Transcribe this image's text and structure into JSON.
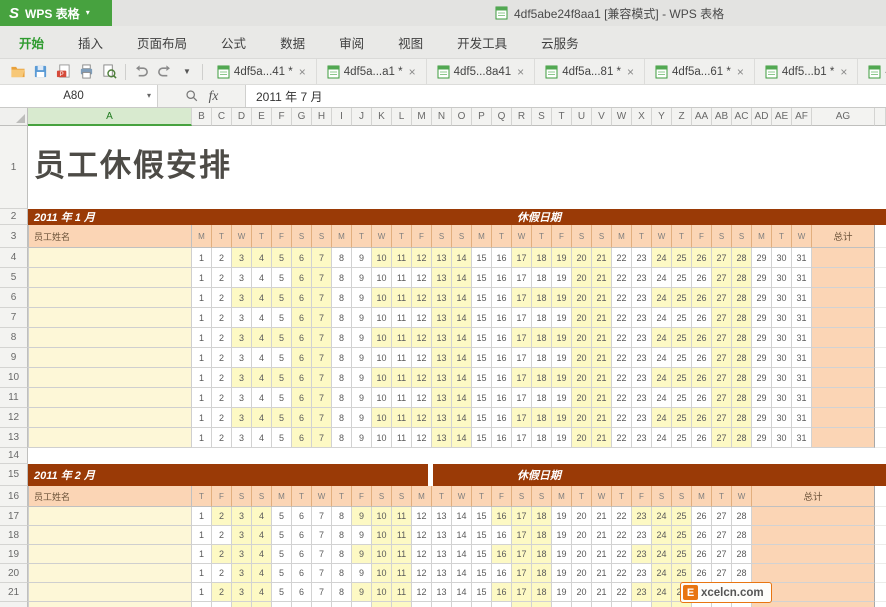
{
  "titlebar": {
    "app_button_label": "WPS 表格",
    "window_title": "4df5abe24f8aa1 [兼容模式] - WPS 表格"
  },
  "menu": {
    "tabs": [
      "开始",
      "插入",
      "页面布局",
      "公式",
      "数据",
      "审阅",
      "视图",
      "开发工具",
      "云服务"
    ],
    "active_tab": "开始"
  },
  "toolbar": {
    "icon_names": [
      "open-file",
      "save",
      "export-pdf",
      "print",
      "print-preview",
      "undo",
      "redo",
      "customize-toolbar-dropdown"
    ],
    "doc_tabs": [
      {
        "label": "4df5a...41",
        "dirty": true
      },
      {
        "label": "4df5a...a1",
        "dirty": true
      },
      {
        "label": "4df5...8a41",
        "dirty": false
      },
      {
        "label": "4df5a...81",
        "dirty": true
      },
      {
        "label": "4df5a...61",
        "dirty": true
      },
      {
        "label": "4df5...b1",
        "dirty": true
      },
      {
        "label": "4df5a...",
        "dirty": false
      }
    ]
  },
  "formula_bar": {
    "cell_ref": "A80",
    "value": "2011 年 7 月"
  },
  "column_headers": [
    "A",
    "B",
    "C",
    "D",
    "E",
    "F",
    "G",
    "H",
    "I",
    "J",
    "K",
    "L",
    "M",
    "N",
    "O",
    "P",
    "Q",
    "R",
    "S",
    "T",
    "U",
    "V",
    "W",
    "X",
    "Y",
    "Z",
    "AA",
    "AB",
    "AC",
    "AD",
    "AE",
    "AF",
    "AG"
  ],
  "row_headers": [
    1,
    2,
    3,
    4,
    5,
    6,
    7,
    8,
    9,
    10,
    11,
    12,
    13,
    14,
    15,
    16,
    17,
    18,
    19,
    20,
    21
  ],
  "sheet": {
    "doc_title": "员工休假安排",
    "tables": [
      {
        "month_label": "2011 年 1 月",
        "dates_header": "休假日期",
        "name_header": "员工姓名",
        "total_header": "总计",
        "day_letters": [
          "M",
          "T",
          "W",
          "T",
          "F",
          "S",
          "S",
          "M",
          "T",
          "W",
          "T",
          "F",
          "S",
          "S",
          "M",
          "T",
          "W",
          "T",
          "F",
          "S",
          "S",
          "M",
          "T",
          "W",
          "T",
          "F",
          "S",
          "S",
          "M",
          "T",
          "W"
        ],
        "day_numbers": [
          1,
          2,
          3,
          4,
          5,
          6,
          7,
          8,
          9,
          10,
          11,
          12,
          13,
          14,
          15,
          16,
          17,
          18,
          19,
          20,
          21,
          22,
          23,
          24,
          25,
          26,
          27,
          28,
          29,
          30,
          31
        ],
        "weekend_columns": [
          6,
          7,
          13,
          14,
          20,
          21,
          27,
          28
        ],
        "banded_extra_columns": [
          3,
          4,
          5,
          10,
          11,
          12,
          17,
          18,
          19,
          24,
          25,
          26
        ],
        "employee_rows": 10
      },
      {
        "month_label": "2011 年 2 月",
        "dates_header": "休假日期",
        "name_header": "员工姓名",
        "total_header": "总计",
        "day_letters": [
          "T",
          "F",
          "S",
          "S",
          "M",
          "T",
          "W",
          "T",
          "F",
          "S",
          "S",
          "M",
          "T",
          "W",
          "T",
          "F",
          "S",
          "S",
          "M",
          "T",
          "W",
          "T",
          "F",
          "S",
          "S",
          "M",
          "T",
          "W"
        ],
        "day_numbers": [
          1,
          2,
          3,
          4,
          5,
          6,
          7,
          8,
          9,
          10,
          11,
          12,
          13,
          14,
          15,
          16,
          17,
          18,
          19,
          20,
          21,
          22,
          23,
          24,
          25,
          26,
          27,
          28
        ],
        "weekend_columns": [
          3,
          4,
          10,
          11,
          17,
          18,
          24,
          25
        ],
        "banded_extra_columns": [
          2,
          9,
          16,
          23
        ],
        "employee_rows": 6
      }
    ]
  },
  "watermark": {
    "logo_letter": "E",
    "site_text": "xcelcn.com"
  },
  "colors": {
    "wps_green": "#47A23F",
    "active_tab_green": "#2E9B2E",
    "header_red": "#9A3A06",
    "peach": "#FBD5B5",
    "band_yellow": "#FDF9C4",
    "name_yellow": "#FDF7D7"
  }
}
